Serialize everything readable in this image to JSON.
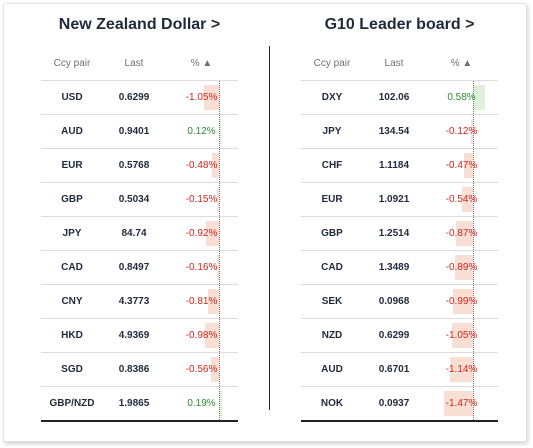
{
  "colors": {
    "negative": "#d2251b",
    "positive": "#2f8d2f",
    "neg_bar": "#f9ded4",
    "pos_bar": "#dff0d9"
  },
  "left": {
    "title": "New Zealand Dollar >",
    "headers": {
      "pair": "Ccy pair",
      "last": "Last",
      "pct": "% ▲"
    },
    "rows": [
      {
        "pair": "USD",
        "last": "0.6299",
        "pct": "-1.05%",
        "value": -1.05
      },
      {
        "pair": "AUD",
        "last": "0.9401",
        "pct": "0.12%",
        "value": 0.12
      },
      {
        "pair": "EUR",
        "last": "0.5768",
        "pct": "-0.48%",
        "value": -0.48
      },
      {
        "pair": "GBP",
        "last": "0.5034",
        "pct": "-0.15%",
        "value": -0.15
      },
      {
        "pair": "JPY",
        "last": "84.74",
        "pct": "-0.92%",
        "value": -0.92
      },
      {
        "pair": "CAD",
        "last": "0.8497",
        "pct": "-0.16%",
        "value": -0.16
      },
      {
        "pair": "CNY",
        "last": "4.3773",
        "pct": "-0.81%",
        "value": -0.81
      },
      {
        "pair": "HKD",
        "last": "4.9369",
        "pct": "-0.98%",
        "value": -0.98
      },
      {
        "pair": "SGD",
        "last": "0.8386",
        "pct": "-0.56%",
        "value": -0.56
      },
      {
        "pair": "GBP/NZD",
        "last": "1.9865",
        "pct": "0.19%",
        "value": 0.19
      }
    ]
  },
  "right": {
    "title": "G10 Leader board >",
    "headers": {
      "pair": "Ccy pair",
      "last": "Last",
      "pct": "% ▲"
    },
    "rows": [
      {
        "pair": "DXY",
        "last": "102.06",
        "pct": "0.58%",
        "value": 0.58
      },
      {
        "pair": "JPY",
        "last": "134.54",
        "pct": "-0.12%",
        "value": -0.12
      },
      {
        "pair": "CHF",
        "last": "1.1184",
        "pct": "-0.47%",
        "value": -0.47
      },
      {
        "pair": "EUR",
        "last": "1.0921",
        "pct": "-0.54%",
        "value": -0.54
      },
      {
        "pair": "GBP",
        "last": "1.2514",
        "pct": "-0.87%",
        "value": -0.87
      },
      {
        "pair": "CAD",
        "last": "1.3489",
        "pct": "-0.89%",
        "value": -0.89
      },
      {
        "pair": "SEK",
        "last": "0.0968",
        "pct": "-0.99%",
        "value": -0.99
      },
      {
        "pair": "NZD",
        "last": "0.6299",
        "pct": "-1.05%",
        "value": -1.05
      },
      {
        "pair": "AUD",
        "last": "0.6701",
        "pct": "-1.14%",
        "value": -1.14
      },
      {
        "pair": "NOK",
        "last": "0.0937",
        "pct": "-1.47%",
        "value": -1.47
      }
    ]
  }
}
